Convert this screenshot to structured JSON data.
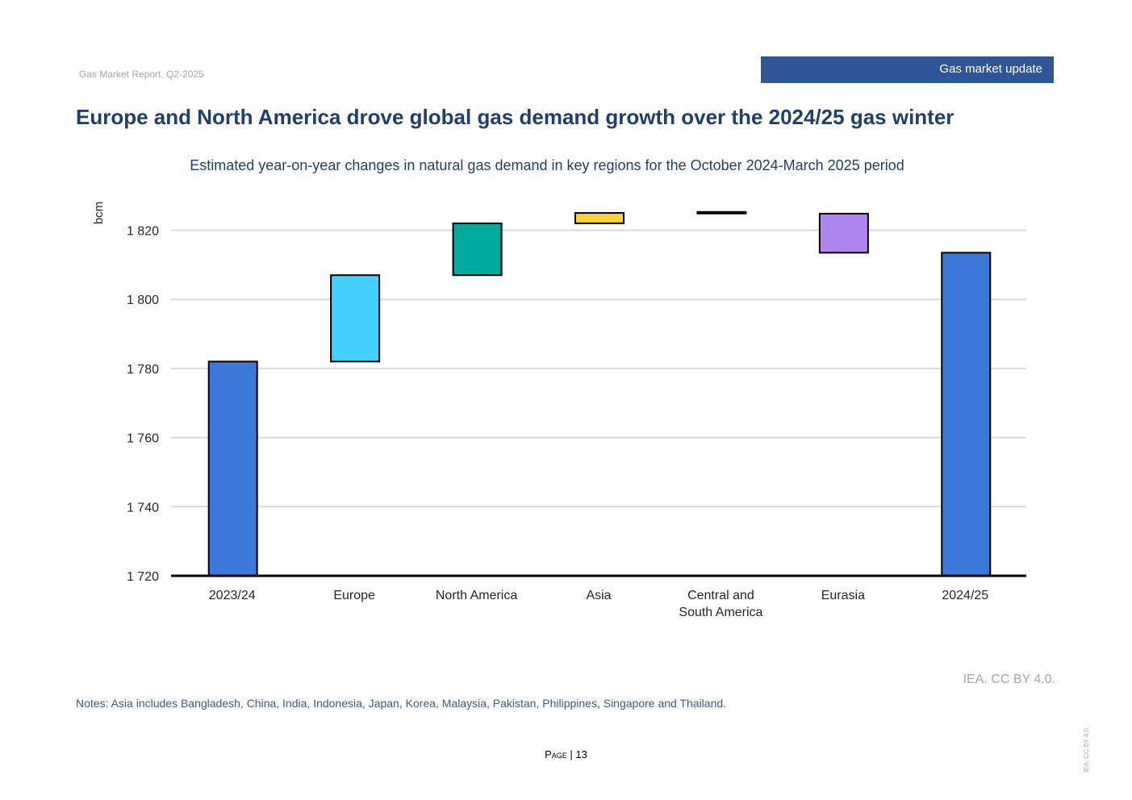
{
  "header": {
    "report_name": "Gas Market Report, Q2-2025",
    "section_label": "Gas market update",
    "banner_color": "#2f5597"
  },
  "page_title": "Europe and North America drove global gas demand growth over the 2024/25 gas winter",
  "footer": {
    "credit": "IEA. CC BY 4.0.",
    "notes": "Notes: Asia includes Bangladesh, China, India, Indonesia, Japan, Korea, Malaysia, Pakistan, Philippines, Singapore and Thailand.",
    "page_label": "Page",
    "page_separator": "|",
    "page_number": "13",
    "side_credit": "IEA. CC BY 4.0."
  },
  "chart_data": {
    "type": "bar",
    "subtype": "waterfall",
    "title": "Estimated year-on-year changes in natural gas demand in key regions for the October 2024-March 2025 period",
    "ylabel": "bcm",
    "xlabel": "",
    "ylim": [
      1720,
      1830
    ],
    "yticks": [
      1720,
      1740,
      1760,
      1780,
      1800,
      1820
    ],
    "ytick_labels": [
      "1 720",
      "1 740",
      "1 760",
      "1 780",
      "1 800",
      "1 820"
    ],
    "grid": true,
    "bars": [
      {
        "category": "2023/24",
        "label_lines": [
          "2023/24"
        ],
        "kind": "total",
        "start": 1720,
        "end": 1782,
        "color": "#3c78d8"
      },
      {
        "category": "Europe",
        "label_lines": [
          "Europe"
        ],
        "kind": "change",
        "start": 1782,
        "end": 1807,
        "color": "#45d0ff"
      },
      {
        "category": "North America",
        "label_lines": [
          "North America"
        ],
        "kind": "change",
        "start": 1807,
        "end": 1822,
        "color": "#00ab9e"
      },
      {
        "category": "Asia",
        "label_lines": [
          "Asia"
        ],
        "kind": "change",
        "start": 1822,
        "end": 1825,
        "color": "#f9d236"
      },
      {
        "category": "Central and South America",
        "label_lines": [
          "Central and",
          "South America"
        ],
        "kind": "change",
        "start": 1825,
        "end": 1825.3,
        "color": "#000000"
      },
      {
        "category": "Eurasia",
        "label_lines": [
          "Eurasia"
        ],
        "kind": "change",
        "start": 1824.8,
        "end": 1813.5,
        "color": "#b085ee"
      },
      {
        "category": "2024/25",
        "label_lines": [
          "2024/25"
        ],
        "kind": "total",
        "start": 1720,
        "end": 1813.5,
        "color": "#3c78d8"
      }
    ]
  }
}
